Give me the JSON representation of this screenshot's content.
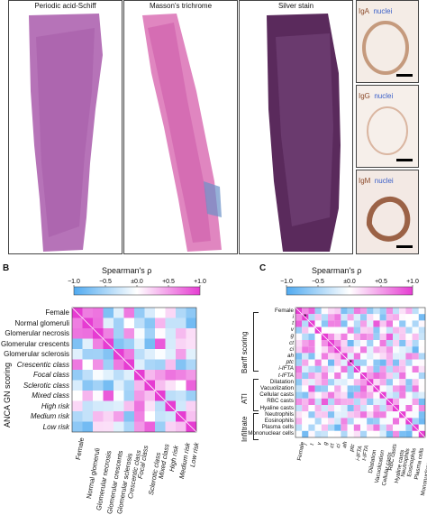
{
  "panel_a": {
    "titles": [
      "Periodic acid-Schiff",
      "Masson's trichrome",
      "Silver stain"
    ],
    "ihc": [
      {
        "stain": "IgA",
        "nuclei": "nuclei"
      },
      {
        "stain": "IgG",
        "nuclei": "nuclei"
      },
      {
        "stain": "IgM",
        "nuclei": "nuclei"
      }
    ],
    "colors": {
      "pas": "#b46ab4",
      "masson": "#d87ab8",
      "silver": "#5a2a5a",
      "ihc_brown": "#8b4a2a",
      "nuclei_blue": "#3a5fc8"
    }
  },
  "panel_b": {
    "letter": "B",
    "colorbar": {
      "title": "Spearman's ρ",
      "ticks": [
        "−1.0",
        "−0.5",
        "±0.0",
        "+0.5",
        "+1.0"
      ]
    },
    "group_label": "ANCA GN scoring",
    "rows": [
      {
        "label": "Female",
        "italic": false
      },
      {
        "label": "Normal glomeruli",
        "italic": false
      },
      {
        "label": "Glomerular necrosis",
        "italic": false
      },
      {
        "label": "Glomerular crescents",
        "italic": false
      },
      {
        "label": "Glomerular sclerosis",
        "italic": false
      },
      {
        "label": "Crescentic class",
        "italic": true
      },
      {
        "label": "Focal class",
        "italic": true
      },
      {
        "label": "Sclerotic class",
        "italic": true
      },
      {
        "label": "Mixed class",
        "italic": true
      },
      {
        "label": "High risk",
        "italic": true
      },
      {
        "label": "Medium risk",
        "italic": true
      },
      {
        "label": "Low risk",
        "italic": true
      }
    ]
  },
  "panel_c": {
    "letter": "C",
    "colorbar": {
      "title": "Spearman's ρ",
      "ticks": [
        "−1.0",
        "−0.5",
        "±0.0",
        "+0.5",
        "+1.0"
      ]
    },
    "groups": [
      "Banff scoring",
      "ATI",
      "Infiltrate"
    ],
    "rows": [
      {
        "label": "Female",
        "italic": false
      },
      {
        "label": "i",
        "italic": true
      },
      {
        "label": "t",
        "italic": true
      },
      {
        "label": "v",
        "italic": true
      },
      {
        "label": "g",
        "italic": true
      },
      {
        "label": "ct",
        "italic": true
      },
      {
        "label": "ci",
        "italic": true
      },
      {
        "label": "ah",
        "italic": true
      },
      {
        "label": "ptc",
        "italic": true
      },
      {
        "label": "i-IFTA",
        "italic": true
      },
      {
        "label": "t-IFTA",
        "italic": true
      },
      {
        "label": "Dilatation",
        "italic": false
      },
      {
        "label": "Vacuolization",
        "italic": false
      },
      {
        "label": "Cellular casts",
        "italic": false
      },
      {
        "label": "RBC casts",
        "italic": false
      },
      {
        "label": "Hyaline casts",
        "italic": false
      },
      {
        "label": "Neutrophils",
        "italic": false
      },
      {
        "label": "Eosinophils",
        "italic": false
      },
      {
        "label": "Plasma cells",
        "italic": false
      },
      {
        "label": "Mononuclear cells",
        "italic": false
      }
    ],
    "stars": [
      "*",
      "*"
    ]
  }
}
